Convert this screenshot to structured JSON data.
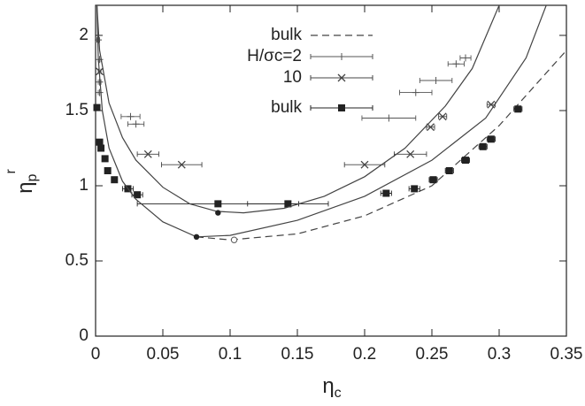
{
  "chart_data": {
    "type": "line",
    "xlabel": {
      "symbol": "η",
      "sub": "c"
    },
    "ylabel": {
      "symbol": "η",
      "sub": "p",
      "sup": "r"
    },
    "xlim": [
      0,
      0.35
    ],
    "ylim": [
      0,
      2.2
    ],
    "xticks": [
      0,
      0.05,
      0.1,
      0.15,
      0.2,
      0.25,
      0.3,
      0.35
    ],
    "yticks": [
      0,
      0.5,
      1,
      1.5,
      2
    ],
    "grid": false,
    "legend": "top-center",
    "series": [
      {
        "name": "bulk",
        "color": "#444444",
        "style": "dashed",
        "line": true,
        "x": [
          0.075,
          0.1,
          0.15,
          0.2,
          0.25,
          0.3,
          0.35
        ],
        "values": [
          0.66,
          0.64,
          0.68,
          0.8,
          1.0,
          1.4,
          1.9
        ]
      },
      {
        "name": "H/σc=2",
        "color": "#555555",
        "marker": "plus",
        "x": [
          0.002,
          0.003,
          0.003,
          0.003,
          0.026,
          0.03,
          0.218,
          0.238,
          0.253,
          0.268,
          0.275
        ],
        "values": [
          1.97,
          1.84,
          1.69,
          1.62,
          1.46,
          1.41,
          1.45,
          1.62,
          1.7,
          1.81,
          1.85
        ],
        "xerr": [
          0.001,
          0.001,
          0.001,
          0.001,
          0.007,
          0.006,
          0.02,
          0.012,
          0.012,
          0.006,
          0.004
        ]
      },
      {
        "name": "10",
        "color": "#444444",
        "marker": "cross",
        "x": [
          0.003,
          0.039,
          0.064,
          0.2,
          0.234,
          0.249,
          0.258,
          0.294
        ],
        "values": [
          1.76,
          1.21,
          1.14,
          1.14,
          1.21,
          1.39,
          1.46,
          1.54
        ],
        "xerr": [
          0.001,
          0.008,
          0.015,
          0.015,
          0.012,
          0.003,
          0.003,
          0.003
        ]
      },
      {
        "name": "bulk",
        "color": "#222222",
        "marker": "square",
        "x": [
          0.001,
          0.003,
          0.004,
          0.007,
          0.009,
          0.014,
          0.024,
          0.031,
          0.091,
          0.143,
          0.216,
          0.237,
          0.251,
          0.263,
          0.275,
          0.288,
          0.294,
          0.314
        ],
        "values": [
          1.52,
          1.29,
          1.25,
          1.18,
          1.1,
          1.04,
          0.98,
          0.94,
          0.88,
          0.88,
          0.95,
          0.98,
          1.04,
          1.1,
          1.17,
          1.26,
          1.31,
          1.51
        ],
        "xerr": [
          0.001,
          0.001,
          0.001,
          0.002,
          0.002,
          0.002,
          0.004,
          0.004,
          0.06,
          0.03,
          0.004,
          0.004,
          0.003,
          0.003,
          0.003,
          0.003,
          0.003,
          0.003
        ]
      },
      {
        "color": "#444444",
        "style": "solid",
        "line": true,
        "x": [
          0.001,
          0.003,
          0.01,
          0.02,
          0.03,
          0.05,
          0.07,
          0.09,
          0.11,
          0.14,
          0.17,
          0.2,
          0.23,
          0.26,
          0.28,
          0.3
        ],
        "values": [
          2.2,
          1.9,
          1.55,
          1.32,
          1.17,
          0.99,
          0.88,
          0.83,
          0.82,
          0.85,
          0.93,
          1.06,
          1.25,
          1.53,
          1.78,
          2.2
        ]
      },
      {
        "color": "#444444",
        "style": "solid",
        "line": true,
        "x": [
          0.001,
          0.002,
          0.005,
          0.01,
          0.02,
          0.03,
          0.05,
          0.075,
          0.1,
          0.15,
          0.2,
          0.25,
          0.29,
          0.32,
          0.335
        ],
        "values": [
          2.2,
          1.85,
          1.5,
          1.25,
          1.03,
          0.91,
          0.76,
          0.66,
          0.67,
          0.77,
          0.93,
          1.17,
          1.45,
          1.85,
          2.2
        ]
      },
      {
        "color": "#222222",
        "marker": "circle",
        "x": [
          0.075,
          0.091
        ],
        "values": [
          0.66,
          0.82
        ]
      },
      {
        "color": "#555555",
        "marker": "open-circle",
        "x": [
          0.103
        ],
        "values": [
          0.64
        ]
      }
    ]
  }
}
